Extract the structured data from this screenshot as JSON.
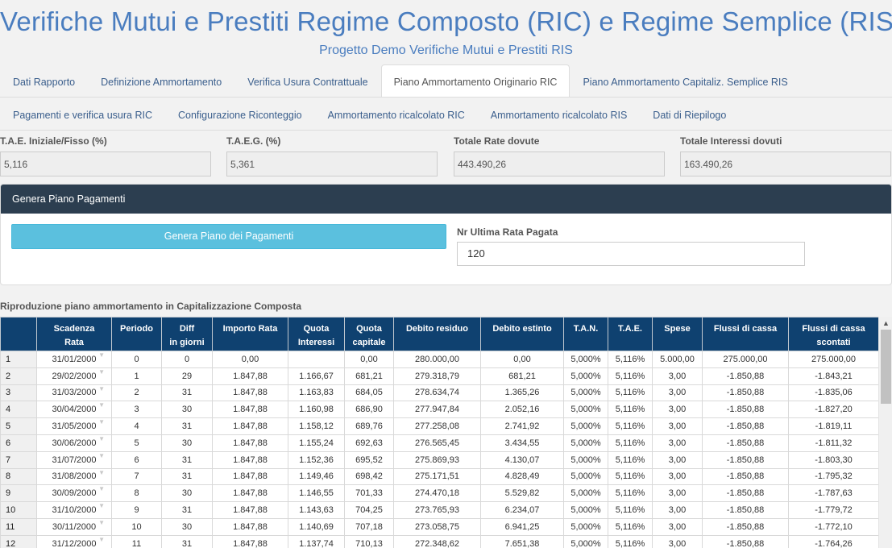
{
  "header": {
    "title": "Verifiche Mutui e Prestiti Regime Composto (RIC) e Regime Semplice (RIS)",
    "subtitle": "Progetto Demo Verifiche Mutui e Prestiti RIS"
  },
  "tabs_row1": [
    {
      "label": "Dati Rapporto",
      "active": false
    },
    {
      "label": "Definizione Ammortamento",
      "active": false
    },
    {
      "label": "Verifica Usura Contrattuale",
      "active": false
    },
    {
      "label": "Piano Ammortamento Originario RIC",
      "active": true
    },
    {
      "label": "Piano Ammortamento Capitaliz. Semplice RIS",
      "active": false
    }
  ],
  "tabs_row2": [
    {
      "label": "Pagamenti e verifica usura RIC",
      "active": false
    },
    {
      "label": "Configurazione Riconteggio",
      "active": false
    },
    {
      "label": "Ammortamento ricalcolato RIC",
      "active": false
    },
    {
      "label": "Ammortamento ricalcolato RIS",
      "active": false
    },
    {
      "label": "Dati di Riepilogo",
      "active": false
    }
  ],
  "kpis": [
    {
      "label": "T.A.E. Iniziale/Fisso (%)",
      "value": "5,116"
    },
    {
      "label": "T.A.E.G. (%)",
      "value": "5,361"
    },
    {
      "label": "Totale Rate dovute",
      "value": "443.490,26"
    },
    {
      "label": "Totale Interessi dovuti",
      "value": "163.490,26"
    }
  ],
  "panel": {
    "title": "Genera Piano Pagamenti",
    "button_label": "Genera Piano dei Pagamenti",
    "nr_label": "Nr Ultima Rata Pagata",
    "nr_value": "120"
  },
  "section_title": "Riproduzione piano ammortamento in Capitalizzazione Composta",
  "table": {
    "headers": [
      "",
      "Scadenza\nRata",
      "Periodo",
      "Diff\nin giorni",
      "Importo Rata",
      "Quota\nInteressi",
      "Quota\ncapitale",
      "Debito residuo",
      "Debito estinto",
      "T.A.N.",
      "T.A.E.",
      "Spese",
      "Flussi di cassa",
      "Flussi di cassa\nscontati"
    ],
    "rows": [
      [
        "1",
        "31/01/2000",
        "0",
        "0",
        "0,00",
        "",
        "0,00",
        "280.000,00",
        "0,00",
        "5,000%",
        "5,116%",
        "5.000,00",
        "275.000,00",
        "275.000,00"
      ],
      [
        "2",
        "29/02/2000",
        "1",
        "29",
        "1.847,88",
        "1.166,67",
        "681,21",
        "279.318,79",
        "681,21",
        "5,000%",
        "5,116%",
        "3,00",
        "-1.850,88",
        "-1.843,21"
      ],
      [
        "3",
        "31/03/2000",
        "2",
        "31",
        "1.847,88",
        "1.163,83",
        "684,05",
        "278.634,74",
        "1.365,26",
        "5,000%",
        "5,116%",
        "3,00",
        "-1.850,88",
        "-1.835,06"
      ],
      [
        "4",
        "30/04/2000",
        "3",
        "30",
        "1.847,88",
        "1.160,98",
        "686,90",
        "277.947,84",
        "2.052,16",
        "5,000%",
        "5,116%",
        "3,00",
        "-1.850,88",
        "-1.827,20"
      ],
      [
        "5",
        "31/05/2000",
        "4",
        "31",
        "1.847,88",
        "1.158,12",
        "689,76",
        "277.258,08",
        "2.741,92",
        "5,000%",
        "5,116%",
        "3,00",
        "-1.850,88",
        "-1.819,11"
      ],
      [
        "6",
        "30/06/2000",
        "5",
        "30",
        "1.847,88",
        "1.155,24",
        "692,63",
        "276.565,45",
        "3.434,55",
        "5,000%",
        "5,116%",
        "3,00",
        "-1.850,88",
        "-1.811,32"
      ],
      [
        "7",
        "31/07/2000",
        "6",
        "31",
        "1.847,88",
        "1.152,36",
        "695,52",
        "275.869,93",
        "4.130,07",
        "5,000%",
        "5,116%",
        "3,00",
        "-1.850,88",
        "-1.803,30"
      ],
      [
        "8",
        "31/08/2000",
        "7",
        "31",
        "1.847,88",
        "1.149,46",
        "698,42",
        "275.171,51",
        "4.828,49",
        "5,000%",
        "5,116%",
        "3,00",
        "-1.850,88",
        "-1.795,32"
      ],
      [
        "9",
        "30/09/2000",
        "8",
        "30",
        "1.847,88",
        "1.146,55",
        "701,33",
        "274.470,18",
        "5.529,82",
        "5,000%",
        "5,116%",
        "3,00",
        "-1.850,88",
        "-1.787,63"
      ],
      [
        "10",
        "31/10/2000",
        "9",
        "31",
        "1.847,88",
        "1.143,63",
        "704,25",
        "273.765,93",
        "6.234,07",
        "5,000%",
        "5,116%",
        "3,00",
        "-1.850,88",
        "-1.779,72"
      ],
      [
        "11",
        "30/11/2000",
        "10",
        "30",
        "1.847,88",
        "1.140,69",
        "707,18",
        "273.058,75",
        "6.941,25",
        "5,000%",
        "5,116%",
        "3,00",
        "-1.850,88",
        "-1.772,10"
      ],
      [
        "12",
        "31/12/2000",
        "11",
        "31",
        "1.847,88",
        "1.137,74",
        "710,13",
        "272.348,62",
        "7.651,38",
        "5,000%",
        "5,116%",
        "3,00",
        "-1.850,88",
        "-1.764,26"
      ]
    ]
  },
  "icons": {
    "dropdown": "chevron-down-icon",
    "scroll_up": "scroll-up-arrow-icon"
  }
}
